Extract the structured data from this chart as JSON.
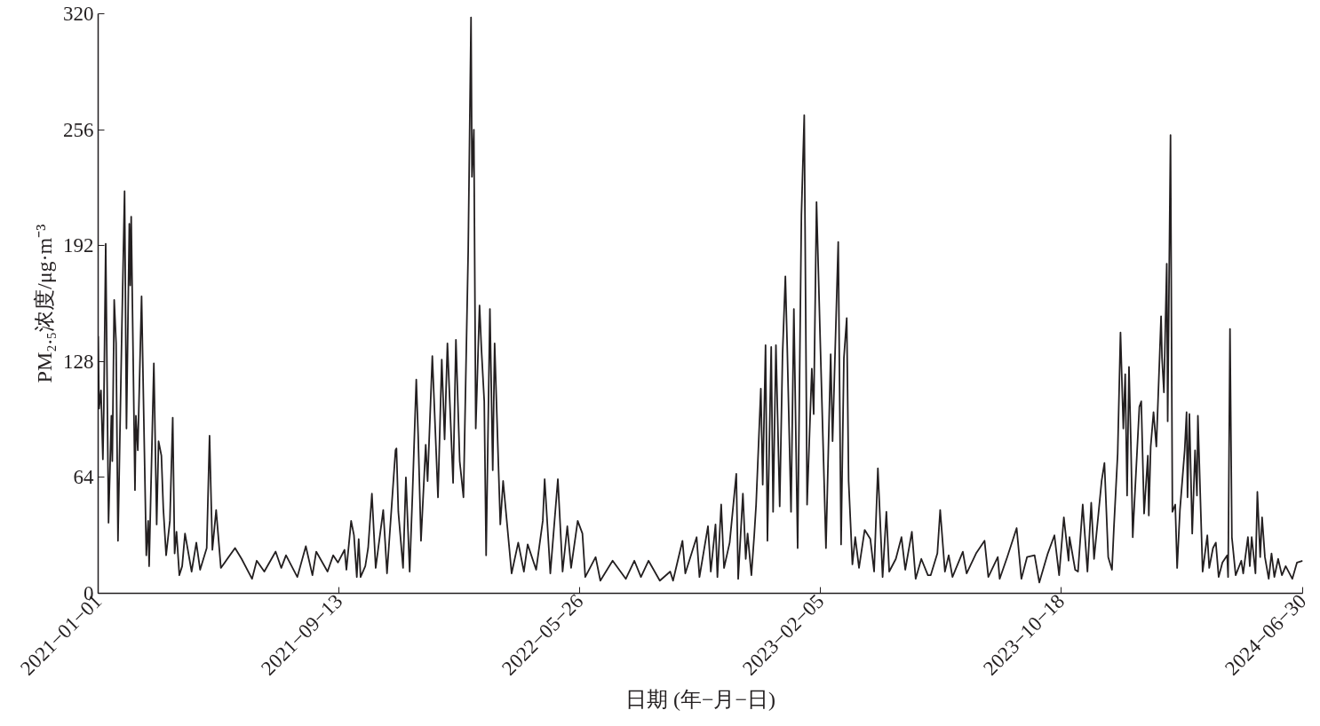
{
  "chart_data": {
    "type": "line",
    "xlabel": "日期 (年−月−日)",
    "ylabel": "PM₂.₅浓度/μg·m⁻³",
    "color": "#231f20",
    "grid": false,
    "line_style": "solid",
    "xlim": [
      "2021-01-01",
      "2024-06-30"
    ],
    "ylim": [
      0,
      320
    ],
    "xticks": [
      {
        "value": "2021-01-01",
        "label": "2021−01−01"
      },
      {
        "value": "2021-09-13",
        "label": "2021−09−13"
      },
      {
        "value": "2022-05-26",
        "label": "2022−05−26"
      },
      {
        "value": "2023-02-05",
        "label": "2023−02−05"
      },
      {
        "value": "2023-10-18",
        "label": "2023−10−18"
      },
      {
        "value": "2024-06-30",
        "label": "2024−06−30"
      }
    ],
    "yticks": [
      0,
      64,
      128,
      192,
      256,
      320
    ],
    "x": [
      "2021-01-01",
      "2021-01-02",
      "2021-01-04",
      "2021-01-06",
      "2021-01-07",
      "2021-01-09",
      "2021-01-12",
      "2021-01-15",
      "2021-01-16",
      "2021-01-18",
      "2021-01-20",
      "2021-01-22",
      "2021-01-26",
      "2021-01-29",
      "2021-01-31",
      "2021-02-03",
      "2021-02-04",
      "2021-02-05",
      "2021-02-09",
      "2021-02-10",
      "2021-02-12",
      "2021-02-16",
      "2021-02-21",
      "2021-02-23",
      "2021-02-24",
      "2021-03-01",
      "2021-03-04",
      "2021-03-06",
      "2021-03-09",
      "2021-03-11",
      "2021-03-14",
      "2021-03-18",
      "2021-03-21",
      "2021-03-23",
      "2021-03-25",
      "2021-03-28",
      "2021-03-31",
      "2021-04-03",
      "2021-04-10",
      "2021-04-15",
      "2021-04-19",
      "2021-04-26",
      "2021-04-29",
      "2021-05-02",
      "2021-05-06",
      "2021-05-11",
      "2021-05-26",
      "2021-06-02",
      "2021-06-13",
      "2021-06-18",
      "2021-06-26",
      "2021-07-08",
      "2021-07-14",
      "2021-07-19",
      "2021-07-30",
      "2021-07-31",
      "2021-08-09",
      "2021-08-16",
      "2021-08-20",
      "2021-09-01",
      "2021-09-07",
      "2021-09-12",
      "2021-09-19",
      "2021-09-21",
      "2021-09-26",
      "2021-09-29",
      "2021-10-02",
      "2021-10-04",
      "2021-10-06",
      "2021-10-11",
      "2021-10-14",
      "2021-10-18",
      "2021-10-22",
      "2021-10-30",
      "2021-11-03",
      "2021-11-12",
      "2021-11-13",
      "2021-11-15",
      "2021-11-20",
      "2021-11-23",
      "2021-11-27",
      "2021-11-30",
      "2021-12-04",
      "2021-12-06",
      "2021-12-09",
      "2021-12-14",
      "2021-12-16",
      "2021-12-21",
      "2021-12-27",
      "2021-12-31",
      "2022-01-03",
      "2022-01-06",
      "2022-01-12",
      "2022-01-15",
      "2022-01-19",
      "2022-01-23",
      "2022-01-28",
      "2022-01-31",
      "2022-02-01",
      "2022-02-03",
      "2022-02-05",
      "2022-02-09",
      "2022-02-11",
      "2022-02-14",
      "2022-02-16",
      "2022-02-20",
      "2022-02-23",
      "2022-02-25",
      "2022-03-03",
      "2022-03-06",
      "2022-03-15",
      "2022-03-22",
      "2022-03-28",
      "2022-04-01",
      "2022-04-10",
      "2022-04-17",
      "2022-04-19",
      "2022-04-25",
      "2022-05-03",
      "2022-05-08",
      "2022-05-13",
      "2022-05-17",
      "2022-05-24",
      "2022-05-29",
      "2022-06-01",
      "2022-06-12",
      "2022-06-17",
      "2022-06-30",
      "2022-07-14",
      "2022-07-23",
      "2022-07-30",
      "2022-08-07",
      "2022-08-19",
      "2022-08-30",
      "2022-09-02",
      "2022-09-12",
      "2022-09-15",
      "2022-09-27",
      "2022-09-30",
      "2022-10-09",
      "2022-10-12",
      "2022-10-17",
      "2022-10-19",
      "2022-10-23",
      "2022-10-26",
      "2022-11-01",
      "2022-11-08",
      "2022-11-10",
      "2022-11-15",
      "2022-11-18",
      "2022-11-20",
      "2022-11-24",
      "2022-11-27",
      "2022-11-29",
      "2022-12-04",
      "2022-12-06",
      "2022-12-09",
      "2022-12-11",
      "2022-12-15",
      "2022-12-17",
      "2022-12-20",
      "2022-12-24",
      "2022-12-27",
      "2022-12-30",
      "2023-01-01",
      "2023-01-05",
      "2023-01-08",
      "2023-01-12",
      "2023-01-16",
      "2023-01-19",
      "2023-01-22",
      "2023-01-27",
      "2023-01-29",
      "2023-02-01",
      "2023-02-05",
      "2023-02-11",
      "2023-02-16",
      "2023-02-18",
      "2023-02-24",
      "2023-02-27",
      "2023-03-02",
      "2023-03-05",
      "2023-03-07",
      "2023-03-11",
      "2023-03-14",
      "2023-03-18",
      "2023-03-24",
      "2023-03-30",
      "2023-04-03",
      "2023-04-07",
      "2023-04-12",
      "2023-04-16",
      "2023-04-19",
      "2023-04-26",
      "2023-05-02",
      "2023-05-06",
      "2023-05-13",
      "2023-05-17",
      "2023-05-23",
      "2023-05-30",
      "2023-06-02",
      "2023-06-09",
      "2023-06-12",
      "2023-06-17",
      "2023-06-21",
      "2023-06-25",
      "2023-07-06",
      "2023-07-10",
      "2023-07-20",
      "2023-07-29",
      "2023-08-02",
      "2023-08-12",
      "2023-08-14",
      "2023-08-22",
      "2023-09-01",
      "2023-09-06",
      "2023-09-12",
      "2023-09-20",
      "2023-09-25",
      "2023-10-04",
      "2023-10-11",
      "2023-10-16",
      "2023-10-21",
      "2023-10-26",
      "2023-10-27",
      "2023-11-02",
      "2023-11-05",
      "2023-11-10",
      "2023-11-15",
      "2023-11-19",
      "2023-11-22",
      "2023-11-30",
      "2023-12-03",
      "2023-12-07",
      "2023-12-11",
      "2023-12-13",
      "2023-12-17",
      "2023-12-20",
      "2023-12-23",
      "2023-12-25",
      "2023-12-27",
      "2023-12-29",
      "2023-12-31",
      "2024-01-02",
      "2024-01-03",
      "2024-01-09",
      "2024-01-11",
      "2024-01-14",
      "2024-01-18",
      "2024-01-19",
      "2024-01-21",
      "2024-01-24",
      "2024-01-27",
      "2024-02-01",
      "2024-02-02",
      "2024-02-04",
      "2024-02-07",
      "2024-02-08",
      "2024-02-11",
      "2024-02-13",
      "2024-02-16",
      "2024-02-18",
      "2024-02-21",
      "2024-02-26",
      "2024-02-28",
      "2024-02-29",
      "2024-03-02",
      "2024-03-05",
      "2024-03-08",
      "2024-03-10",
      "2024-03-11",
      "2024-03-14",
      "2024-03-16",
      "2024-03-21",
      "2024-03-23",
      "2024-03-27",
      "2024-03-30",
      "2024-04-02",
      "2024-04-06",
      "2024-04-11",
      "2024-04-12",
      "2024-04-14",
      "2024-04-16",
      "2024-04-20",
      "2024-04-26",
      "2024-04-28",
      "2024-05-03",
      "2024-05-05",
      "2024-05-07",
      "2024-05-11",
      "2024-05-13",
      "2024-05-16",
      "2024-05-18",
      "2024-05-21",
      "2024-05-25",
      "2024-05-28",
      "2024-05-31",
      "2024-06-04",
      "2024-06-08",
      "2024-06-12",
      "2024-06-19",
      "2024-06-24",
      "2024-06-30"
    ],
    "values": [
      142,
      102,
      112,
      74,
      102,
      193,
      39,
      98,
      73,
      162,
      138,
      29,
      143,
      222,
      91,
      204,
      170,
      208,
      57,
      98,
      79,
      164,
      21,
      40,
      15,
      127,
      38,
      84,
      76,
      47,
      21,
      40,
      97,
      22,
      34,
      10,
      15,
      33,
      12,
      28,
      13,
      25,
      87,
      24,
      46,
      14,
      25,
      19,
      8,
      18,
      12,
      23,
      14,
      21,
      10,
      9,
      26,
      10,
      23,
      12,
      21,
      17,
      24,
      13,
      40,
      32,
      9,
      30,
      9,
      15,
      25,
      55,
      14,
      46,
      11,
      79,
      80,
      45,
      14,
      64,
      12,
      55,
      118,
      87,
      29,
      82,
      62,
      131,
      53,
      129,
      85,
      138,
      61,
      140,
      73,
      53,
      189,
      318,
      230,
      256,
      91,
      159,
      135,
      106,
      21,
      157,
      68,
      138,
      38,
      62,
      11,
      28,
      12,
      27,
      13,
      40,
      63,
      11,
      63,
      12,
      37,
      14,
      40,
      33,
      9,
      20,
      7,
      18,
      8,
      18,
      9,
      18,
      7,
      12,
      7,
      29,
      11,
      31,
      9,
      37,
      12,
      38,
      9,
      49,
      14,
      28,
      66,
      8,
      55,
      19,
      33,
      10,
      32,
      49,
      113,
      60,
      137,
      29,
      136,
      45,
      137,
      48,
      132,
      175,
      135,
      45,
      157,
      25,
      209,
      264,
      49,
      124,
      99,
      216,
      138,
      25,
      132,
      84,
      194,
      27,
      130,
      152,
      62,
      16,
      31,
      14,
      35,
      30,
      12,
      69,
      9,
      45,
      12,
      19,
      31,
      13,
      34,
      8,
      19,
      10,
      10,
      22,
      46,
      12,
      21,
      9,
      23,
      11,
      22,
      29,
      9,
      20,
      8,
      20,
      36,
      8,
      20,
      21,
      6,
      22,
      32,
      10,
      42,
      18,
      31,
      13,
      12,
      49,
      12,
      50,
      19,
      62,
      72,
      20,
      13,
      36,
      77,
      144,
      91,
      121,
      54,
      125,
      83,
      31,
      42,
      103,
      106,
      44,
      76,
      43,
      81,
      100,
      81,
      153,
      130,
      111,
      182,
      95,
      253,
      45,
      49,
      14,
      46,
      79,
      100,
      53,
      99,
      33,
      79,
      54,
      98,
      46,
      12,
      32,
      14,
      25,
      28,
      9,
      17,
      21,
      9,
      146,
      31,
      10,
      18,
      11,
      31,
      15,
      31,
      11,
      56,
      20,
      42,
      20,
      8,
      22,
      9,
      19,
      10,
      15,
      8,
      17,
      18
    ]
  }
}
